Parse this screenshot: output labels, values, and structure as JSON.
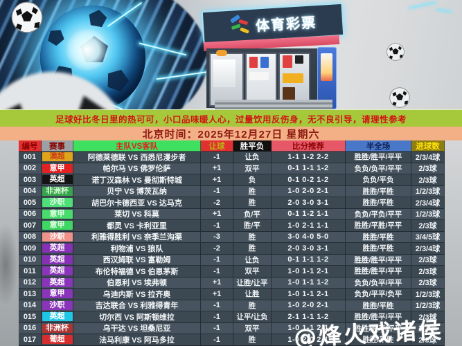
{
  "hero": {
    "sign_text": "体育彩票",
    "logo_icon": "lottery-tickets-logo",
    "soccer_ball_icon": "soccer-ball-icon",
    "energy_ball_icon": "electric-soccer-ball"
  },
  "slogan": "足球好比冬日里的热可可，小口品味暖人心，过量饮用反伤身，无不良引导，请理性参考",
  "datetime_banner": "北京时间：2025年12月27日  星期六",
  "watermark": "@烽火戏诸侯",
  "colors": {
    "slogan_bg": "#a6c93c",
    "slogan_text": "#d01414",
    "datebar_bg": "#f3b086",
    "datebar_text": "#8e1a12",
    "row_dark": "#3c4852",
    "row_light": "#47545f"
  },
  "table": {
    "headers": [
      {
        "label": "编号",
        "bg": "#e23030",
        "fg": "#8a0000"
      },
      {
        "label": "赛事",
        "bg": "#9ba1a5",
        "fg": "#8a0000"
      },
      {
        "label": "主队VS客队",
        "bg": "#3fe060",
        "fg": "#e22020"
      },
      {
        "label": "让球",
        "bg": "#e23030",
        "fg": "#b7b714"
      },
      {
        "label": "胜平负",
        "bg": "#101010",
        "fg": "#ffffff"
      },
      {
        "label": "比分推荐",
        "bg": "#e65868",
        "fg": "#8a0000"
      },
      {
        "label": "半全场",
        "bg": "#4a78c8",
        "fg": "#0d1c50"
      },
      {
        "label": "进球数",
        "bg": "#8e7e12",
        "fg": "#ffe20a"
      }
    ],
    "rows": [
      {
        "id": "001",
        "league": "澳超",
        "league_bg": "#e0a41a",
        "league_fg": "#c8401a",
        "match": "阿德莱德联 VS 西悉尼漫步者",
        "handicap": "-1",
        "wdl": "让负",
        "scores": "1-1 1-2 2-2",
        "half_full": "胜胜/胜平/平平",
        "goals": "2/3/4球"
      },
      {
        "id": "002",
        "league": "意甲",
        "league_bg": "#e22222",
        "league_fg": "#ffffff",
        "match": "帕尔马 VS 佛罗伦萨",
        "handicap": "+1",
        "wdl": "双平",
        "scores": "0-1 1-1 1-2",
        "half_full": "负负/负平/平平",
        "goals": "2/3球"
      },
      {
        "id": "003",
        "league": "英超",
        "league_bg": "#141414",
        "league_fg": "#ffffff",
        "match": "诺丁汉森林 VS 曼彻斯特城",
        "handicap": "+1",
        "wdl": "负",
        "scores": "0-1 0-2 1-2",
        "half_full": "负负/平负",
        "goals": "2/3球"
      },
      {
        "id": "004",
        "league": "非洲杯",
        "league_bg": "#38a24c",
        "league_fg": "#d8ffd8",
        "match": "贝宁 VS 博茨瓦纳",
        "handicap": "-1",
        "wdl": "胜",
        "scores": "1-0 2-0 2-1",
        "half_full": "胜胜/平胜",
        "goals": "1/2/3球"
      },
      {
        "id": "005",
        "league": "沙职",
        "league_bg": "#50de78",
        "league_fg": "#e8ffe8",
        "match": "胡巴尔卡德西亚 VS 达马克",
        "handicap": "-2",
        "wdl": "胜",
        "scores": "2-0 3-0 3-1",
        "half_full": "胜胜/平胜",
        "goals": "2/3/4球"
      },
      {
        "id": "006",
        "league": "意甲",
        "league_bg": "#48dc6c",
        "league_fg": "#e8ffe8",
        "match": "莱切 VS 科莫",
        "handicap": "+1",
        "wdl": "负/平",
        "scores": "0-1 1-2 1-1",
        "half_full": "负负/平负/平平",
        "goals": "1/2/3球"
      },
      {
        "id": "007",
        "league": "意甲",
        "league_bg": "#40d664",
        "league_fg": "#e8ffe8",
        "match": "都灵 VS 卡利亚里",
        "handicap": "-1",
        "wdl": "胜/平",
        "scores": "1-0 2-1 1-1",
        "half_full": "胜胜/平胜/平平",
        "goals": "2/3球"
      },
      {
        "id": "008",
        "league": "沙职",
        "league_bg": "#f0928a",
        "league_fg": "#ffffff",
        "match": "利雅得胜利 VS 奈季兰沟渠",
        "handicap": "-3",
        "wdl": "胜",
        "scores": "3-0 4-0 5-0",
        "half_full": "胜胜/平胜",
        "goals": "3/4/5球"
      },
      {
        "id": "009",
        "league": "英超",
        "league_bg": "#8630b6",
        "league_fg": "#ffffff",
        "match": "利物浦 VS 狼队",
        "handicap": "-2",
        "wdl": "胜",
        "scores": "2-0 3-0 3-1",
        "half_full": "胜胜/平胜",
        "goals": "2/3/4球"
      },
      {
        "id": "010",
        "league": "英超",
        "league_bg": "#8630b6",
        "league_fg": "#ffffff",
        "match": "西汉姆联 VS 富勒姆",
        "handicap": "-1",
        "wdl": "让负",
        "scores": "0-1 1-1 1-2",
        "half_full": "胜胜/胜平/平平",
        "goals": "2/3球"
      },
      {
        "id": "011",
        "league": "英超",
        "league_bg": "#8a34ba",
        "league_fg": "#ffffff",
        "match": "布伦特福德 VS 伯恩茅斯",
        "handicap": "-1",
        "wdl": "双平",
        "scores": "1-0 1-1 2-1",
        "half_full": "胜胜/胜平/平平",
        "goals": "2/3球"
      },
      {
        "id": "012",
        "league": "英超",
        "league_bg": "#8a34ba",
        "league_fg": "#ffffff",
        "match": "伯恩利 VS 埃弗顿",
        "handicap": "+1",
        "wdl": "让胜/让平",
        "scores": "1-0 1-1 1-2",
        "half_full": "负负/负平/平平",
        "goals": "2/3球"
      },
      {
        "id": "013",
        "league": "意甲",
        "league_bg": "#8a34ba",
        "league_fg": "#ffffff",
        "match": "乌迪内斯 VS 拉齐奥",
        "handicap": "+1",
        "wdl": "让胜",
        "scores": "1-0 1-1 2-1",
        "half_full": "负负/平平/负平",
        "goals": "1/2/3球"
      },
      {
        "id": "014",
        "league": "沙职",
        "league_bg": "#8a34ba",
        "league_fg": "#ffffff",
        "match": "吉达联合 VS 利雅得青年",
        "handicap": "-1",
        "wdl": "胜",
        "scores": "1-0 2-0 2-1",
        "half_full": "胜胜/平胜",
        "goals": "1/2/3球"
      },
      {
        "id": "015",
        "league": "英超",
        "league_bg": "#20c6e6",
        "league_fg": "#ffffff",
        "match": "切尔西 VS 阿斯顿维拉",
        "handicap": "-1",
        "wdl": "让平/让负",
        "scores": "2-1 1-1 1-2",
        "half_full": "胜胜/胜平/平平",
        "goals": "2/3球"
      },
      {
        "id": "016",
        "league": "非洲杯",
        "league_bg": "#ae3434",
        "league_fg": "#ffffff",
        "match": "乌干达 VS 坦桑尼亚",
        "handicap": "-1",
        "wdl": "双平",
        "scores": "1-0 1-1 2-1",
        "half_full": "胜胜/胜平/平平",
        "goals": "2/3球"
      },
      {
        "id": "017",
        "league": "葡超",
        "league_bg": "#d62e2e",
        "league_fg": "#ffffff",
        "match": "法马利康 VS 阿马多拉",
        "handicap": "-1",
        "wdl": "胜",
        "scores": "1-0 2-0 2-1",
        "half_full": "胜胜/平胜",
        "goals": "2/3球"
      }
    ]
  }
}
